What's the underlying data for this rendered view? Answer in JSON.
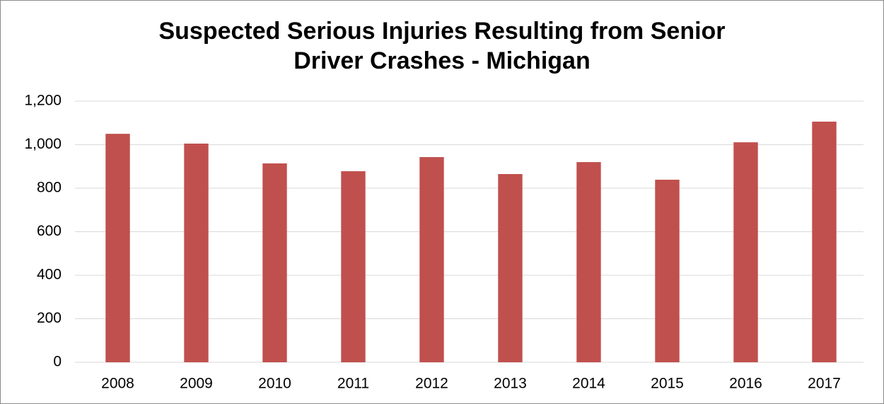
{
  "chart_data": {
    "type": "bar",
    "title": "Suspected Serious Injuries Resulting from Senior Driver Crashes - Michigan",
    "categories": [
      "2008",
      "2009",
      "2010",
      "2011",
      "2012",
      "2013",
      "2014",
      "2015",
      "2016",
      "2017"
    ],
    "values": [
      1050,
      1005,
      914,
      878,
      943,
      865,
      920,
      839,
      1011,
      1106
    ],
    "color": "#c0504d",
    "ylim": [
      0,
      1200
    ],
    "yticks": [
      0,
      200,
      400,
      600,
      800,
      {
        "value": 1000,
        "label": "1,000"
      },
      {
        "value": 1200,
        "label": "1,200"
      }
    ],
    "grid": true
  }
}
